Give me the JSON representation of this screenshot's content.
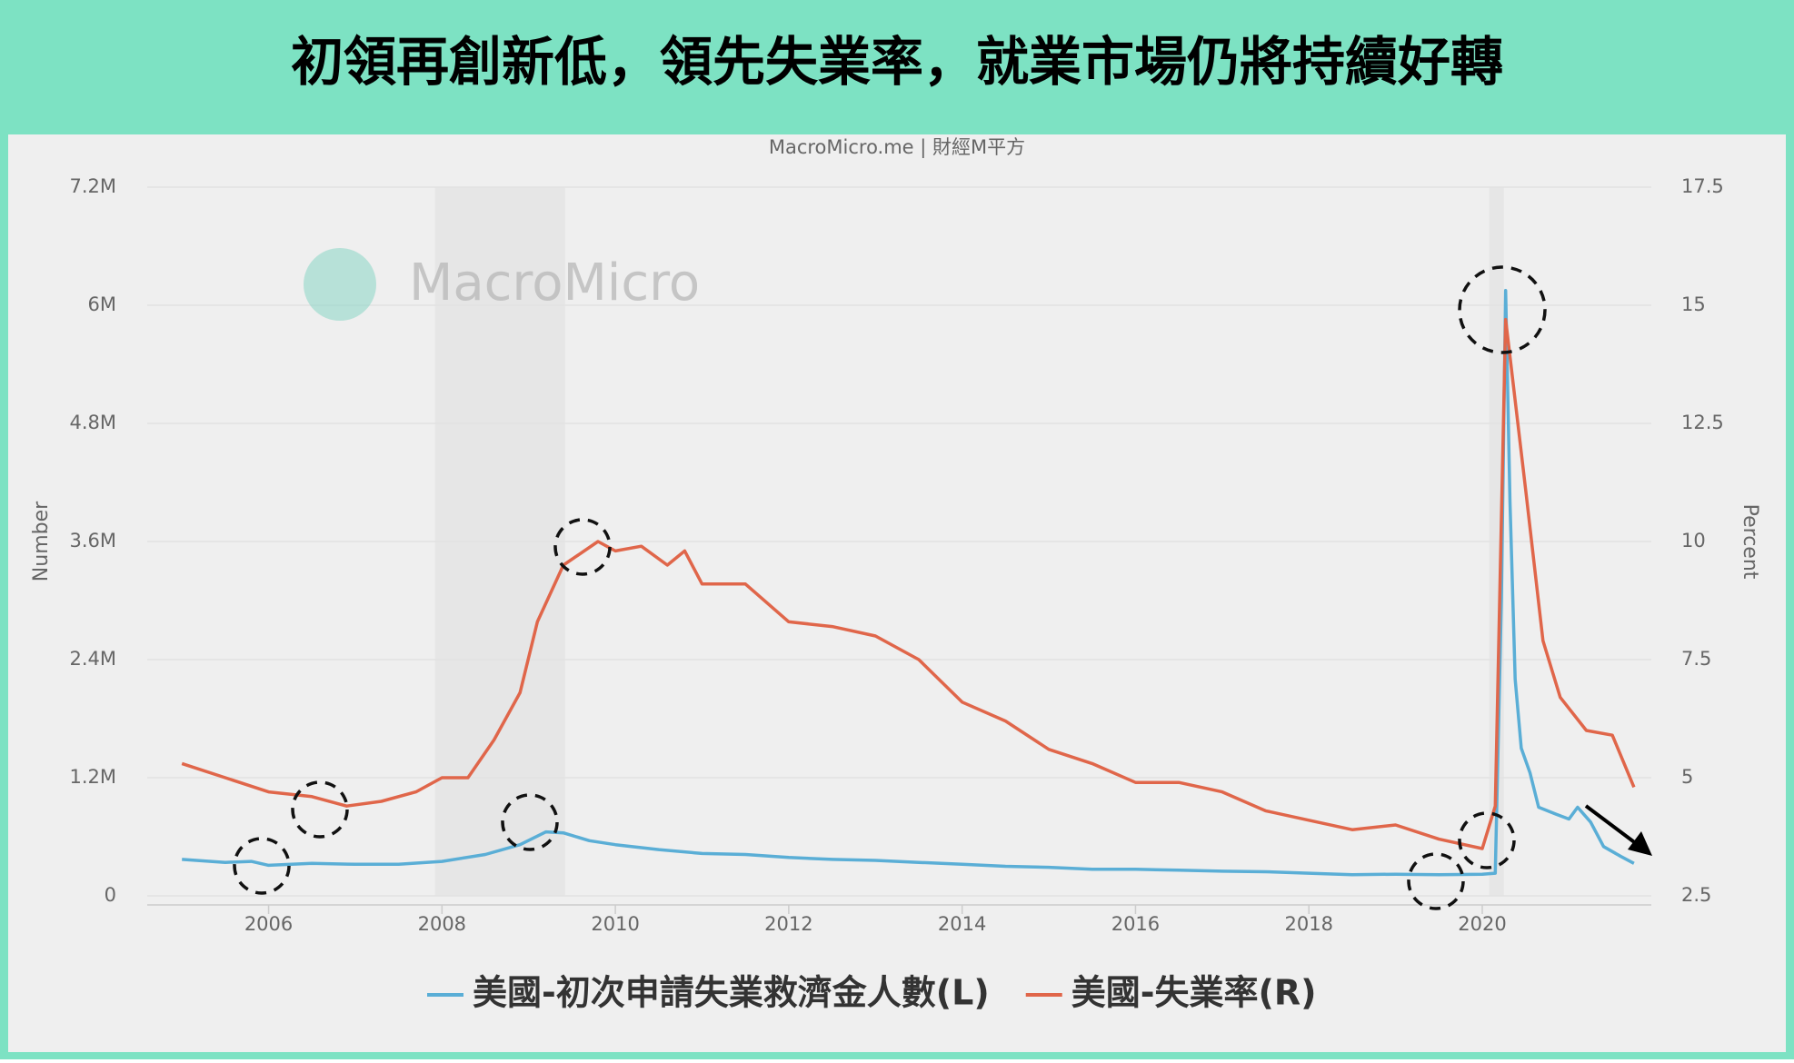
{
  "header": {
    "title": "初領再創新低，領先失業率，就業市場仍將持續好轉"
  },
  "chart_data": {
    "type": "line",
    "source": "MacroMicro.me | 財經M平方",
    "watermark": "MacroMicro",
    "ylabel": "Number",
    "y2label": "Percent",
    "xlim": [
      2004.6,
      2021.95
    ],
    "xticks": [
      2006,
      2008,
      2010,
      2012,
      2014,
      2016,
      2018,
      2020
    ],
    "ylim": [
      0,
      7200000
    ],
    "yticks": [
      0,
      {
        "value": 1200000,
        "label": "1.2M"
      },
      {
        "value": 2400000,
        "label": "2.4M"
      },
      {
        "value": 3600000,
        "label": "3.6M"
      },
      {
        "value": 4800000,
        "label": "4.8M"
      },
      {
        "value": 6000000,
        "label": "6M"
      },
      {
        "value": 7200000,
        "label": "7.2M"
      }
    ],
    "y2lim": [
      2.5,
      17.5
    ],
    "y2ticks": [
      2.5,
      5,
      7.5,
      10,
      12.5,
      15,
      17.5
    ],
    "grid": true,
    "recessions": [
      [
        2007.92,
        2009.42
      ],
      [
        2020.08,
        2020.25
      ]
    ],
    "series": [
      {
        "name": "美國-初次申請失業救濟金人數(L)",
        "color": "#5aaed6",
        "x": [
          2005.0,
          2005.5,
          2005.8,
          2006.0,
          2006.5,
          2007.0,
          2007.5,
          2008.0,
          2008.5,
          2008.9,
          2009.2,
          2009.4,
          2009.7,
          2010.0,
          2010.5,
          2011.0,
          2011.5,
          2012.0,
          2012.5,
          2013.0,
          2013.5,
          2014.0,
          2014.5,
          2015.0,
          2015.5,
          2016.0,
          2016.5,
          2017.0,
          2017.5,
          2018.0,
          2018.5,
          2019.0,
          2019.5,
          2020.0,
          2020.15,
          2020.22,
          2020.27,
          2020.32,
          2020.38,
          2020.45,
          2020.55,
          2020.65,
          2020.85,
          2021.0,
          2021.1,
          2021.25,
          2021.4,
          2021.6,
          2021.75
        ],
        "values": [
          370000,
          340000,
          350000,
          310000,
          330000,
          320000,
          320000,
          350000,
          420000,
          520000,
          650000,
          640000,
          560000,
          520000,
          470000,
          430000,
          420000,
          390000,
          370000,
          360000,
          340000,
          320000,
          300000,
          290000,
          270000,
          270000,
          260000,
          250000,
          245000,
          230000,
          215000,
          220000,
          215000,
          220000,
          230000,
          3000000,
          6150000,
          4000000,
          2200000,
          1500000,
          1250000,
          900000,
          830000,
          780000,
          900000,
          750000,
          500000,
          400000,
          330000
        ]
      },
      {
        "name": "美國-失業率(R)",
        "color": "#e0664a",
        "axis": "y2",
        "x": [
          2005.0,
          2005.5,
          2006.0,
          2006.5,
          2006.9,
          2007.3,
          2007.7,
          2008.0,
          2008.3,
          2008.6,
          2008.9,
          2009.1,
          2009.4,
          2009.8,
          2010.0,
          2010.3,
          2010.6,
          2010.8,
          2011.0,
          2011.5,
          2012.0,
          2012.5,
          2013.0,
          2013.5,
          2014.0,
          2014.5,
          2015.0,
          2015.5,
          2016.0,
          2016.5,
          2017.0,
          2017.5,
          2018.0,
          2018.5,
          2019.0,
          2019.5,
          2020.0,
          2020.15,
          2020.27,
          2020.5,
          2020.7,
          2020.9,
          2021.2,
          2021.5,
          2021.75
        ],
        "values": [
          5.3,
          5.0,
          4.7,
          4.6,
          4.4,
          4.5,
          4.7,
          5.0,
          5.0,
          5.8,
          6.8,
          8.3,
          9.5,
          10.0,
          9.8,
          9.9,
          9.5,
          9.8,
          9.1,
          9.1,
          8.3,
          8.2,
          8.0,
          7.5,
          6.6,
          6.2,
          5.6,
          5.3,
          4.9,
          4.9,
          4.7,
          4.3,
          4.1,
          3.9,
          4.0,
          3.7,
          3.5,
          4.4,
          14.7,
          11.1,
          7.9,
          6.7,
          6.0,
          5.9,
          4.8
        ]
      }
    ]
  }
}
